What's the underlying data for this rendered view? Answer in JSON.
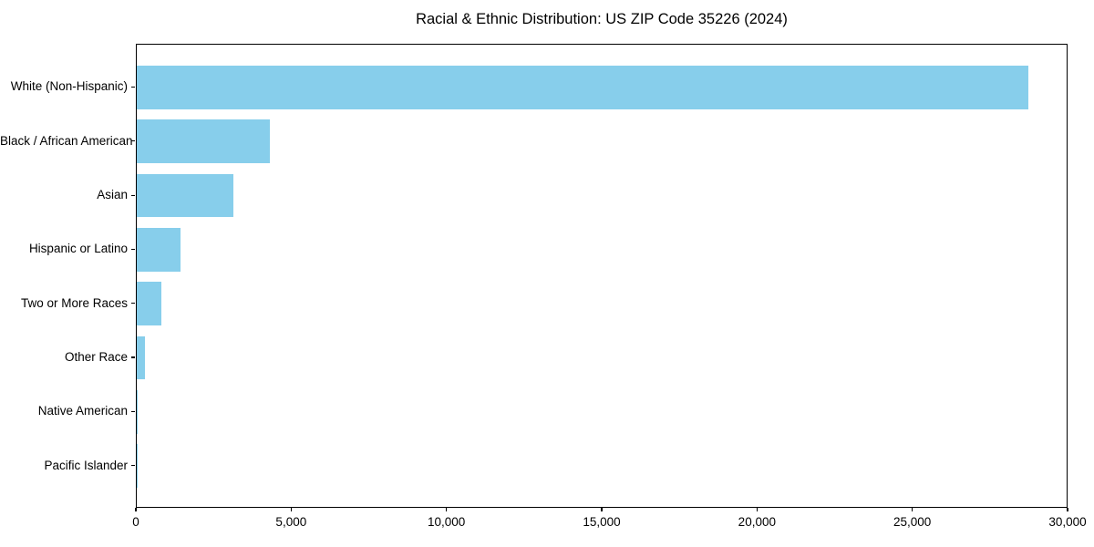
{
  "title": "Racial & Ethnic Distribution: US ZIP Code 35226 (2024)",
  "colors": {
    "bar": "#87CEEB",
    "axis": "#000000",
    "text": "#000000",
    "background": "#FFFFFF"
  },
  "chart_data": {
    "type": "bar",
    "orientation": "horizontal",
    "title": "Racial & Ethnic Distribution: US ZIP Code 35226 (2024)",
    "xlabel": "",
    "ylabel": "",
    "categories": [
      "White (Non-Hispanic)",
      "Black / African American",
      "Asian",
      "Hispanic or Latino",
      "Two or More Races",
      "Other Race",
      "Native American",
      "Pacific Islander"
    ],
    "values": [
      28700,
      4300,
      3100,
      1400,
      800,
      250,
      20,
      10
    ],
    "xlim": [
      0,
      30000
    ],
    "x_ticks": [
      0,
      5000,
      10000,
      15000,
      20000,
      25000,
      30000
    ],
    "x_tick_labels": [
      "0",
      "5,000",
      "10,000",
      "15,000",
      "20,000",
      "25,000",
      "30,000"
    ],
    "grid": false,
    "legend": null,
    "bar_color": "#87CEEB"
  }
}
